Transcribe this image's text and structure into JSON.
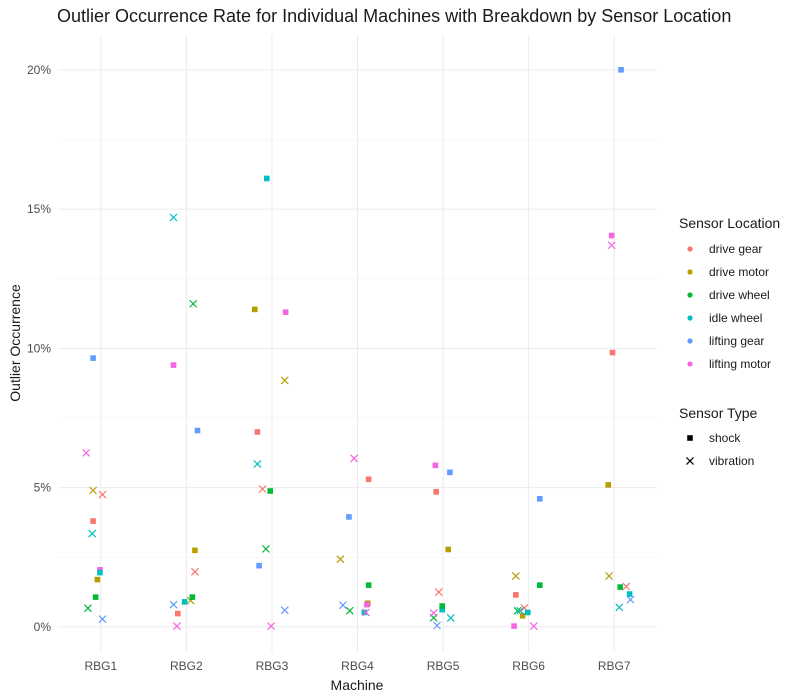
{
  "chart_data": {
    "type": "scatter",
    "title": "Outlier Occurrence Rate for Individual Machines with Breakdown by Sensor Location",
    "xlabel": "Machine",
    "ylabel": "Outlier Occurrence",
    "categories": [
      "RBG1",
      "RBG2",
      "RBG3",
      "RBG4",
      "RBG5",
      "RBG6",
      "RBG7"
    ],
    "ylim": [
      -0.009,
      0.2125
    ],
    "yticks": [
      0,
      0.05,
      0.1,
      0.15,
      0.2
    ],
    "ytick_labels": [
      "0%",
      "5%",
      "10%",
      "15%",
      "20%"
    ],
    "grid": true,
    "legend_position": "right",
    "color_legend": {
      "title": "Sensor Location",
      "entries": [
        {
          "label": "drive gear",
          "color": "#F8766D"
        },
        {
          "label": "drive motor",
          "color": "#B79F00"
        },
        {
          "label": "drive wheel",
          "color": "#00BA38"
        },
        {
          "label": "idle wheel",
          "color": "#00BFC4"
        },
        {
          "label": "lifting gear",
          "color": "#619CFF"
        },
        {
          "label": "lifting motor",
          "color": "#F564E3"
        }
      ]
    },
    "shape_legend": {
      "title": "Sensor Type",
      "entries": [
        {
          "label": "shock",
          "shape": "square"
        },
        {
          "label": "vibration",
          "shape": "x"
        }
      ]
    },
    "points": [
      {
        "machine": "RBG1",
        "offset": -0.15,
        "location": "drive wheel",
        "type": "vibration",
        "y": 0.0067
      },
      {
        "machine": "RBG1",
        "offset": -0.17,
        "location": "lifting motor",
        "type": "vibration",
        "y": 0.0625
      },
      {
        "machine": "RBG1",
        "offset": -0.09,
        "location": "drive motor",
        "type": "vibration",
        "y": 0.049
      },
      {
        "machine": "RBG1",
        "offset": -0.09,
        "location": "drive gear",
        "type": "shock",
        "y": 0.038
      },
      {
        "machine": "RBG1",
        "offset": -0.09,
        "location": "lifting gear",
        "type": "shock",
        "y": 0.0965
      },
      {
        "machine": "RBG1",
        "offset": -0.1,
        "location": "idle wheel",
        "type": "vibration",
        "y": 0.0335
      },
      {
        "machine": "RBG1",
        "offset": -0.04,
        "location": "drive motor",
        "type": "shock",
        "y": 0.017
      },
      {
        "machine": "RBG1",
        "offset": -0.06,
        "location": "drive wheel",
        "type": "shock",
        "y": 0.0107
      },
      {
        "machine": "RBG1",
        "offset": -0.01,
        "location": "lifting motor",
        "type": "shock",
        "y": 0.0205
      },
      {
        "machine": "RBG1",
        "offset": -0.01,
        "location": "idle wheel",
        "type": "shock",
        "y": 0.0195
      },
      {
        "machine": "RBG1",
        "offset": 0.02,
        "location": "drive gear",
        "type": "vibration",
        "y": 0.0475
      },
      {
        "machine": "RBG1",
        "offset": 0.02,
        "location": "lifting gear",
        "type": "vibration",
        "y": 0.0028
      },
      {
        "machine": "RBG2",
        "offset": -0.15,
        "location": "lifting motor",
        "type": "shock",
        "y": 0.094
      },
      {
        "machine": "RBG2",
        "offset": -0.15,
        "location": "idle wheel",
        "type": "vibration",
        "y": 0.147
      },
      {
        "machine": "RBG2",
        "offset": -0.15,
        "location": "lifting gear",
        "type": "vibration",
        "y": 0.008
      },
      {
        "machine": "RBG2",
        "offset": -0.1,
        "location": "drive gear",
        "type": "shock",
        "y": 0.0048
      },
      {
        "machine": "RBG2",
        "offset": -0.11,
        "location": "lifting motor",
        "type": "vibration",
        "y": 0.0003
      },
      {
        "machine": "RBG2",
        "offset": -0.02,
        "location": "idle wheel",
        "type": "shock",
        "y": 0.009
      },
      {
        "machine": "RBG2",
        "offset": 0.08,
        "location": "drive wheel",
        "type": "vibration",
        "y": 0.116
      },
      {
        "machine": "RBG2",
        "offset": 0.05,
        "location": "drive motor",
        "type": "vibration",
        "y": 0.0095
      },
      {
        "machine": "RBG2",
        "offset": 0.07,
        "location": "drive wheel",
        "type": "shock",
        "y": 0.0107
      },
      {
        "machine": "RBG2",
        "offset": 0.1,
        "location": "drive motor",
        "type": "shock",
        "y": 0.0275
      },
      {
        "machine": "RBG2",
        "offset": 0.1,
        "location": "drive gear",
        "type": "vibration",
        "y": 0.0198
      },
      {
        "machine": "RBG2",
        "offset": 0.13,
        "location": "lifting gear",
        "type": "shock",
        "y": 0.0705
      },
      {
        "machine": "RBG3",
        "offset": -0.2,
        "location": "drive motor",
        "type": "shock",
        "y": 0.114
      },
      {
        "machine": "RBG3",
        "offset": -0.17,
        "location": "drive gear",
        "type": "shock",
        "y": 0.07
      },
      {
        "machine": "RBG3",
        "offset": -0.17,
        "location": "idle wheel",
        "type": "vibration",
        "y": 0.0585
      },
      {
        "machine": "RBG3",
        "offset": -0.15,
        "location": "lifting gear",
        "type": "shock",
        "y": 0.022
      },
      {
        "machine": "RBG3",
        "offset": -0.11,
        "location": "drive gear",
        "type": "vibration",
        "y": 0.0495
      },
      {
        "machine": "RBG3",
        "offset": -0.06,
        "location": "idle wheel",
        "type": "shock",
        "y": 0.161
      },
      {
        "machine": "RBG3",
        "offset": -0.07,
        "location": "drive wheel",
        "type": "vibration",
        "y": 0.028
      },
      {
        "machine": "RBG3",
        "offset": -0.02,
        "location": "drive wheel",
        "type": "shock",
        "y": 0.0488
      },
      {
        "machine": "RBG3",
        "offset": -0.01,
        "location": "lifting motor",
        "type": "vibration",
        "y": 0.0003
      },
      {
        "machine": "RBG3",
        "offset": 0.15,
        "location": "drive motor",
        "type": "vibration",
        "y": 0.0885
      },
      {
        "machine": "RBG3",
        "offset": 0.16,
        "location": "lifting motor",
        "type": "shock",
        "y": 0.113
      },
      {
        "machine": "RBG3",
        "offset": 0.15,
        "location": "lifting gear",
        "type": "vibration",
        "y": 0.006
      },
      {
        "machine": "RBG4",
        "offset": -0.17,
        "location": "lifting gear",
        "type": "vibration",
        "y": 0.0078
      },
      {
        "machine": "RBG4",
        "offset": -0.2,
        "location": "drive motor",
        "type": "vibration",
        "y": 0.0243
      },
      {
        "machine": "RBG4",
        "offset": -0.1,
        "location": "lifting gear",
        "type": "shock",
        "y": 0.0395
      },
      {
        "machine": "RBG4",
        "offset": -0.09,
        "location": "drive wheel",
        "type": "vibration",
        "y": 0.0058
      },
      {
        "machine": "RBG4",
        "offset": -0.04,
        "location": "lifting motor",
        "type": "vibration",
        "y": 0.0605
      },
      {
        "machine": "RBG4",
        "offset": 0.08,
        "location": "idle wheel",
        "type": "shock",
        "y": 0.0052
      },
      {
        "machine": "RBG4",
        "offset": 0.12,
        "location": "drive motor",
        "type": "shock",
        "y": 0.0085
      },
      {
        "machine": "RBG4",
        "offset": 0.11,
        "location": "lifting motor",
        "type": "shock",
        "y": 0.008
      },
      {
        "machine": "RBG4",
        "offset": 0.13,
        "location": "drive wheel",
        "type": "shock",
        "y": 0.015
      },
      {
        "machine": "RBG4",
        "offset": 0.13,
        "location": "drive gear",
        "type": "shock",
        "y": 0.053
      },
      {
        "machine": "RBG4",
        "offset": 0.1,
        "location": "lifting motor",
        "type": "vibration",
        "y": 0.0052
      },
      {
        "machine": "RBG5",
        "offset": -0.11,
        "location": "drive wheel",
        "type": "vibration",
        "y": 0.0033
      },
      {
        "machine": "RBG5",
        "offset": -0.11,
        "location": "lifting motor",
        "type": "vibration",
        "y": 0.005
      },
      {
        "machine": "RBG5",
        "offset": -0.09,
        "location": "lifting motor",
        "type": "shock",
        "y": 0.058
      },
      {
        "machine": "RBG5",
        "offset": -0.08,
        "location": "drive gear",
        "type": "shock",
        "y": 0.0485
      },
      {
        "machine": "RBG5",
        "offset": -0.05,
        "location": "drive gear",
        "type": "vibration",
        "y": 0.0125
      },
      {
        "machine": "RBG5",
        "offset": -0.07,
        "location": "lifting gear",
        "type": "vibration",
        "y": 0.0005
      },
      {
        "machine": "RBG5",
        "offset": -0.01,
        "location": "idle wheel",
        "type": "shock",
        "y": 0.0062
      },
      {
        "machine": "RBG5",
        "offset": -0.01,
        "location": "drive wheel",
        "type": "shock",
        "y": 0.0075
      },
      {
        "machine": "RBG5",
        "offset": 0.06,
        "location": "drive motor",
        "type": "shock",
        "y": 0.0278
      },
      {
        "machine": "RBG5",
        "offset": 0.08,
        "location": "lifting gear",
        "type": "shock",
        "y": 0.0555
      },
      {
        "machine": "RBG5",
        "offset": 0.09,
        "location": "idle wheel",
        "type": "vibration",
        "y": 0.0032
      },
      {
        "machine": "RBG6",
        "offset": -0.15,
        "location": "drive gear",
        "type": "shock",
        "y": 0.0115
      },
      {
        "machine": "RBG6",
        "offset": -0.15,
        "location": "drive motor",
        "type": "vibration",
        "y": 0.0183
      },
      {
        "machine": "RBG6",
        "offset": -0.17,
        "location": "lifting motor",
        "type": "shock",
        "y": 0.0003
      },
      {
        "machine": "RBG6",
        "offset": -0.13,
        "location": "drive wheel",
        "type": "vibration",
        "y": 0.0058
      },
      {
        "machine": "RBG6",
        "offset": -0.07,
        "location": "drive motor",
        "type": "shock",
        "y": 0.004
      },
      {
        "machine": "RBG6",
        "offset": -0.1,
        "location": "idle wheel",
        "type": "vibration",
        "y": 0.0058
      },
      {
        "machine": "RBG6",
        "offset": -0.05,
        "location": "drive gear",
        "type": "vibration",
        "y": 0.0068
      },
      {
        "machine": "RBG6",
        "offset": -0.01,
        "location": "idle wheel",
        "type": "shock",
        "y": 0.0052
      },
      {
        "machine": "RBG6",
        "offset": 0.06,
        "location": "lifting motor",
        "type": "vibration",
        "y": 0.0003
      },
      {
        "machine": "RBG6",
        "offset": 0.13,
        "location": "drive wheel",
        "type": "shock",
        "y": 0.015
      },
      {
        "machine": "RBG6",
        "offset": 0.13,
        "location": "lifting gear",
        "type": "shock",
        "y": 0.046
      },
      {
        "machine": "RBG7",
        "offset": -0.07,
        "location": "drive motor",
        "type": "shock",
        "y": 0.051
      },
      {
        "machine": "RBG7",
        "offset": -0.06,
        "location": "drive motor",
        "type": "vibration",
        "y": 0.0183
      },
      {
        "machine": "RBG7",
        "offset": -0.03,
        "location": "lifting motor",
        "type": "shock",
        "y": 0.1405
      },
      {
        "machine": "RBG7",
        "offset": -0.03,
        "location": "lifting motor",
        "type": "vibration",
        "y": 0.137
      },
      {
        "machine": "RBG7",
        "offset": -0.02,
        "location": "drive gear",
        "type": "shock",
        "y": 0.0985
      },
      {
        "machine": "RBG7",
        "offset": 0.08,
        "location": "lifting gear",
        "type": "shock",
        "y": 0.2
      },
      {
        "machine": "RBG7",
        "offset": 0.06,
        "location": "idle wheel",
        "type": "vibration",
        "y": 0.007
      },
      {
        "machine": "RBG7",
        "offset": 0.07,
        "location": "drive wheel",
        "type": "shock",
        "y": 0.0143
      },
      {
        "machine": "RBG7",
        "offset": 0.14,
        "location": "drive gear",
        "type": "vibration",
        "y": 0.0145
      },
      {
        "machine": "RBG7",
        "offset": 0.18,
        "location": "idle wheel",
        "type": "shock",
        "y": 0.0118
      },
      {
        "machine": "RBG7",
        "offset": 0.19,
        "location": "lifting gear",
        "type": "vibration",
        "y": 0.0098
      }
    ]
  }
}
